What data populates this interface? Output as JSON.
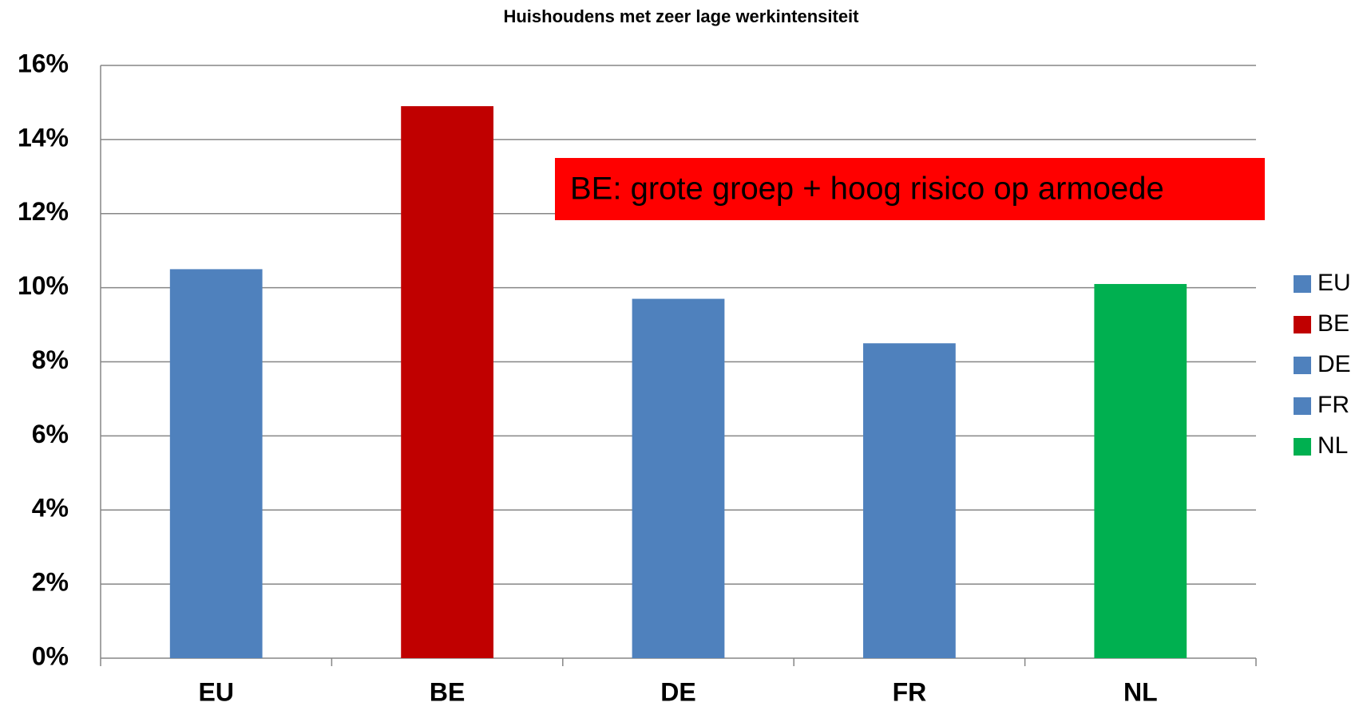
{
  "chart_data": {
    "type": "bar",
    "title": "Huishoudens met zeer lage werkintensiteit",
    "categories": [
      "EU",
      "BE",
      "DE",
      "FR",
      "NL"
    ],
    "values": [
      10.5,
      14.9,
      9.7,
      8.5,
      10.1
    ],
    "colors": [
      "#4f81bd",
      "#c00000",
      "#4f81bd",
      "#4f81bd",
      "#00b050"
    ],
    "ylim": [
      0,
      16
    ],
    "yticks": [
      {
        "value": 0,
        "label": "0%"
      },
      {
        "value": 2,
        "label": "2%"
      },
      {
        "value": 4,
        "label": "4%"
      },
      {
        "value": 6,
        "label": "6%"
      },
      {
        "value": 8,
        "label": "8%"
      },
      {
        "value": 10,
        "label": "10%"
      },
      {
        "value": 12,
        "label": "12%"
      },
      {
        "value": 14,
        "label": "14%"
      },
      {
        "value": 16,
        "label": "16%"
      }
    ],
    "grid": true,
    "legend": "right",
    "annotation": "BE: grote groep + hoog risico op armoede"
  }
}
